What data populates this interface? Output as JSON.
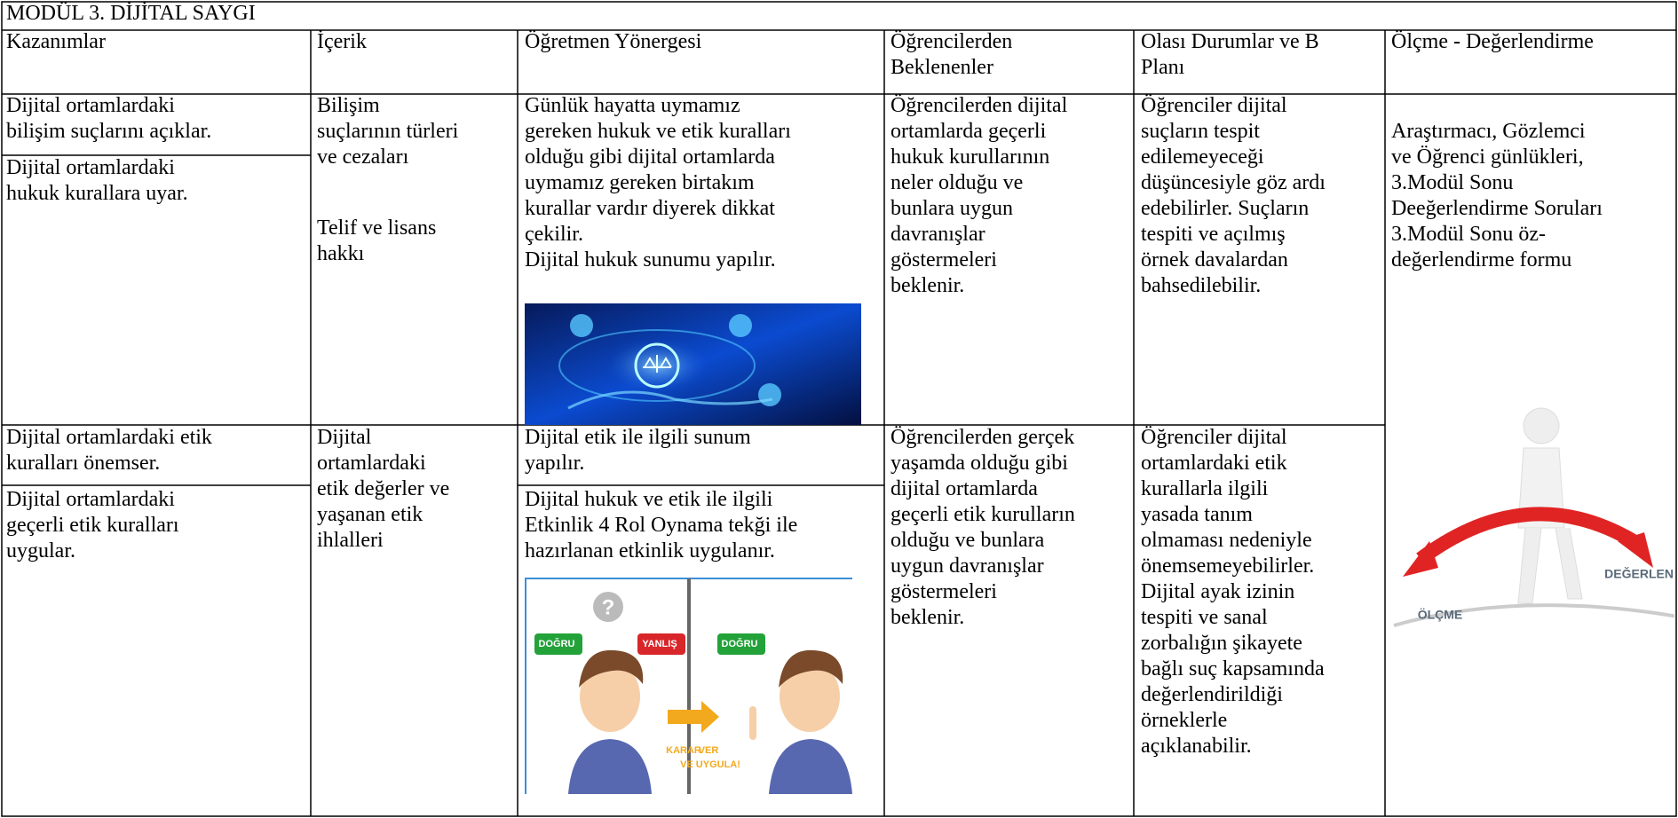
{
  "title": "MODÜL 3. DİJİTAL SAYGI",
  "headers": [
    [
      "Kazanımlar"
    ],
    [
      "İçerik"
    ],
    [
      "Öğretmen Yönergesi"
    ],
    [
      "Öğrencilerden",
      "Beklenenler"
    ],
    [
      "Olası Durumlar ve B",
      "Planı"
    ],
    [
      "Ölçme - Değerlendirme"
    ]
  ],
  "rows": [
    {
      "kazanimlar": [
        [
          "Dijital ortamlardaki",
          "bilişim suçlarını açıklar."
        ],
        [
          "Dijital ortamlardaki",
          "hukuk kurallara uyar."
        ]
      ],
      "icerik": [
        [
          "Bilişim",
          "suçlarının türleri",
          "ve cezaları"
        ],
        [
          "Telif ve lisans",
          "hakkı"
        ]
      ],
      "yonerge": [
        [
          "Günlük hayatta uymamız",
          "gereken hukuk ve etik kuralları",
          "olduğu gibi dijital ortamlarda",
          "uymamız gereken birtakım",
          "kurallar vardır diyerek dikkat",
          "çekilir.",
          "Dijital hukuk sunumu yapılır."
        ]
      ],
      "beklenenler": [
        "Öğrencilerden dijital",
        "ortamlarda geçerli",
        "hukuk kurullarının",
        "neler olduğu ve",
        "bunlara uygun",
        "davranışlar",
        "göstermeleri",
        "beklenir."
      ],
      "durumlar": [
        "Öğrenciler dijital",
        "suçların tespit",
        "edilemeyeceği",
        "düşüncesiyle göz ardı",
        "edebilirler. Suçların",
        "tespiti ve açılmış",
        "örnek davalardan",
        "bahsedilebilir."
      ]
    },
    {
      "kazanimlar": [
        [
          "Dijital ortamlardaki etik",
          "kuralları önemser."
        ],
        [
          "Dijital ortamlardaki",
          "geçerli etik kuralları",
          "uygular."
        ]
      ],
      "icerik": [
        [
          "Dijital",
          "ortamlardaki",
          "etik değerler  ve",
          "yaşanan etik",
          "ihlalleri"
        ]
      ],
      "yonerge": [
        [
          "Dijital etik ile ilgili sunum",
          "yapılır."
        ],
        [
          "Dijital hukuk ve etik ile ilgili",
          "Etkinlik 4 Rol Oynama tekği ile",
          "hazırlanan etkinlik uygulanır."
        ]
      ],
      "beklenenler": [
        "Öğrencilerden gerçek",
        "yaşamda olduğu gibi",
        "dijital ortamlarda",
        "geçerli etik kurulların",
        "olduğu ve bunlara",
        "uygun davranışlar",
        "göstermeleri",
        "beklenir."
      ],
      "durumlar": [
        "Öğrenciler dijital",
        "ortamlardaki etik",
        "kurallarla ilgili",
        "yasada tanım",
        "olmaması nedeniyle",
        "önemsemeyebilirler.",
        "Dijital ayak izinin",
        "tespiti ve sanal",
        "zorbalığın şikayete",
        "bağlı suç kapsamında",
        "değerlendirildiği",
        "örneklerle",
        "açıklanabilir."
      ]
    }
  ],
  "olcme": [
    "Araştırmacı, Gözlemci",
    "ve Öğrenci günlükleri,",
    "3.Modül Sonu",
    "Deeğerlendirme Soruları",
    "3.Modül Sonu öz-",
    "değerlendirme formu"
  ],
  "images": {
    "cartoon": [
      "DOĞRU",
      "YANLIŞ",
      "DOĞRU",
      "KARAR",
      "VER",
      "VE UYGULA!"
    ],
    "measure": [
      "ÖLÇME",
      "DEĞERLENI"
    ]
  }
}
